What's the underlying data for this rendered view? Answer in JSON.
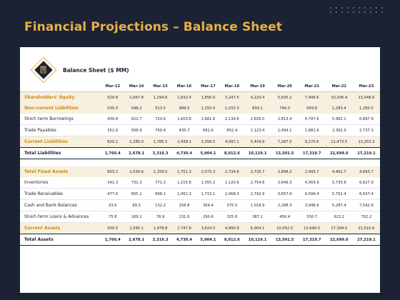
{
  "title": "Financial Projections – Balance Sheet",
  "header_label": "Balance Sheet ($ MM)",
  "icon": "calculator-document-icon",
  "columns": [
    "Mar-13",
    "Mar-14",
    "Mar-15",
    "Mar-16",
    "Mar-17",
    "Mar-18",
    "Mar-19",
    "Mar-20",
    "Mar-21",
    "Mar-22",
    "Mar-23"
  ],
  "rows_top": [
    {
      "label": "Shareholders' Equity",
      "style": "gold",
      "values": [
        "529.8",
        "1,067.8",
        "1,294.6",
        "1,632.4",
        "1,856.0",
        "3,247.5",
        "4,220.4",
        "5,835.2",
        "7,946.6",
        "10,306.4",
        "13,048.6"
      ]
    },
    {
      "label": "Non-current Liabilities",
      "style": "gold",
      "values": [
        "535.0",
        "548.2",
        "513.5",
        "989.0",
        "1,155.0",
        "1,033.3",
        "839.1",
        "744.3",
        "569.8",
        "1,283.4",
        "1,283.5"
      ]
    },
    {
      "label": "Short–term Borrowings",
      "style": "plain",
      "values": [
        "439.8",
        "622.7",
        "720.6",
        "1,603.8",
        "1,681.6",
        "2,139.6",
        "2,835.0",
        "2,813.4",
        "4,797.6",
        "5,982.1",
        "6,897.9"
      ]
    },
    {
      "label": "Trade Payables",
      "style": "plain",
      "values": [
        "352.9",
        "508.9",
        "760.4",
        "435.7",
        "682.6",
        "852.4",
        "1,123.4",
        "1,494.1",
        "1,881.4",
        "2,362.9",
        "2,737.3"
      ]
    },
    {
      "label": "Current Liabilities",
      "style": "gold",
      "values": [
        "820.1",
        "1,285.0",
        "1,785.5",
        "2,438.1",
        "3,358.5",
        "4,097.1",
        "5,434.9",
        "7,287.5",
        "9,170.6",
        "11,473.5",
        "13,253.3"
      ]
    },
    {
      "label": "Total Liabilities",
      "style": "total",
      "values": [
        "1,760.4",
        "2,678.1",
        "3,316.3",
        "4,730.4",
        "5,904.1",
        "8,012.6",
        "10,119.1",
        "13,501.5",
        "17,319.7",
        "22,699.0",
        "27,219.1"
      ]
    }
  ],
  "rows_bottom": [
    {
      "label": "Total Fixed Assets",
      "style": "gold",
      "values": [
        "803.2",
        "1,034.6",
        "1,159.5",
        "1,751.3",
        "2,073.3",
        "2,734.8",
        "2,726.7",
        "2,848.2",
        "2,943.7",
        "4,462.7",
        "4,693.7"
      ]
    },
    {
      "label": "Inventories",
      "style": "plain",
      "values": [
        "341.3",
        "731.3",
        "771.3",
        "1,215.8",
        "1,355.2",
        "2,120.6",
        "2,754.6",
        "3,649.3",
        "4,569.9",
        "5,730.8",
        "6,627.9"
      ]
    },
    {
      "label": "Trade Receivables",
      "style": "plain",
      "values": [
        "477.6",
        "605.1",
        "996.1",
        "1,061.3",
        "1,713.1",
        "2,068.3",
        "2,742.9",
        "3,657.9",
        "4,596.4",
        "5,752.4",
        "6,637.4"
      ]
    },
    {
      "label": "Cash and Bank Balances",
      "style": "plain",
      "values": [
        "33.0",
        "89.5",
        "132.2",
        "258.8",
        "364.4",
        "375.5",
        "1,018.9",
        "2,288.3",
        "3,948.9",
        "5,287.4",
        "7,542.8"
      ]
    },
    {
      "label": "Short–term Loans & Advances",
      "style": "plain",
      "values": [
        "75.8",
        "169.1",
        "76.9",
        "131.6",
        "290.6",
        "325.8",
        "387.1",
        "456.4",
        "530.7",
        "623.2",
        "702.2"
      ]
    },
    {
      "label": "Current Assets",
      "style": "gold",
      "values": [
        "930.5",
        "1,595.1",
        "1,978.8",
        "2,747.8",
        "3,624.0",
        "4,890.9",
        "6,904.1",
        "10,052.5",
        "13,646.5",
        "17,394.5",
        "21,510.6"
      ]
    },
    {
      "label": "Total Assets",
      "style": "total",
      "values": [
        "1,760.4",
        "2,678.1",
        "3,316.3",
        "4,730.4",
        "5,904.1",
        "8,012.6",
        "10,119.1",
        "13,501.5",
        "17,319.7",
        "22,699.0",
        "27,219.1"
      ]
    }
  ]
}
